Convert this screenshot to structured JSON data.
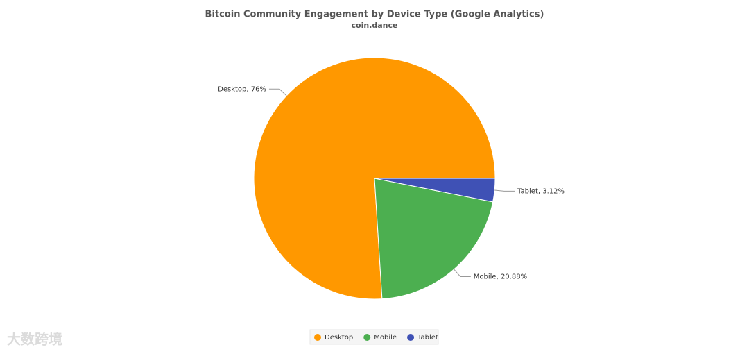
{
  "chart_data": {
    "type": "pie",
    "title": "Bitcoin Community Engagement by Device Type (Google Analytics)",
    "subtitle": "coin.dance",
    "categories": [
      "Desktop",
      "Mobile",
      "Tablet"
    ],
    "values": [
      76,
      20.88,
      3.12
    ],
    "value_labels": [
      "Desktop, 76%",
      "Mobile, 20.88%",
      "Tablet, 3.12%"
    ],
    "colors": [
      "#ff9800",
      "#4caf50",
      "#3f51b5"
    ],
    "legend": "bottom",
    "watermark": "大数跨境"
  }
}
